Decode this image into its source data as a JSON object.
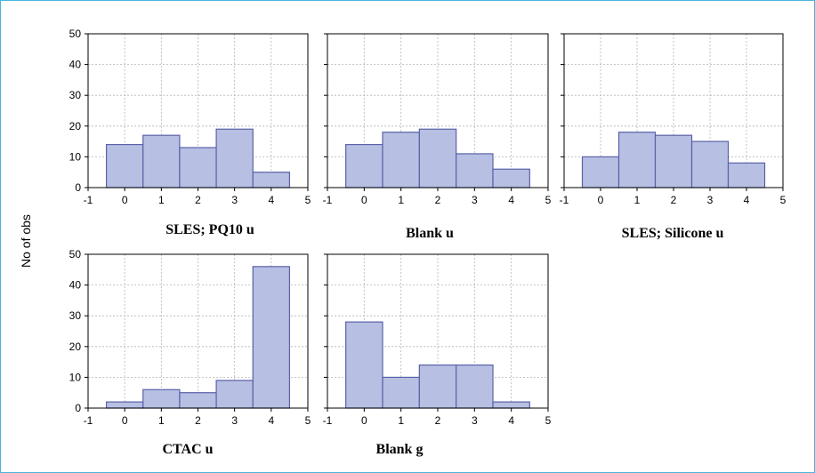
{
  "y_axis_label": "No of obs",
  "chart_data": [
    {
      "type": "bar",
      "title": "SLES; PQ10 u",
      "categories": [
        "0",
        "1",
        "2",
        "3",
        "4"
      ],
      "values": [
        14,
        17,
        13,
        19,
        5
      ],
      "xlim": [
        -1,
        5
      ],
      "ylim": [
        0,
        50
      ],
      "x_ticks": [
        "-1",
        "0",
        "1",
        "2",
        "3",
        "4",
        "5"
      ],
      "y_ticks": [
        "0",
        "10",
        "20",
        "30",
        "40",
        "50"
      ],
      "grid": true
    },
    {
      "type": "bar",
      "title": "Blank u",
      "categories": [
        "0",
        "1",
        "2",
        "3",
        "4"
      ],
      "values": [
        14,
        18,
        19,
        11,
        6
      ],
      "xlim": [
        -1,
        5
      ],
      "ylim": [
        0,
        50
      ],
      "x_ticks": [
        "-1",
        "0",
        "1",
        "2",
        "3",
        "4",
        "5"
      ],
      "y_ticks": [
        "0",
        "10",
        "20",
        "30",
        "40",
        "50"
      ],
      "grid": true
    },
    {
      "type": "bar",
      "title": "SLES; Silicone u",
      "categories": [
        "0",
        "1",
        "2",
        "3",
        "4"
      ],
      "values": [
        10,
        18,
        17,
        15,
        8
      ],
      "xlim": [
        -1,
        5
      ],
      "ylim": [
        0,
        50
      ],
      "x_ticks": [
        "-1",
        "0",
        "1",
        "2",
        "3",
        "4",
        "5"
      ],
      "y_ticks": [
        "0",
        "10",
        "20",
        "30",
        "40",
        "50"
      ],
      "grid": true
    },
    {
      "type": "bar",
      "title": "CTAC u",
      "categories": [
        "0",
        "1",
        "2",
        "3",
        "4"
      ],
      "values": [
        2,
        6,
        5,
        9,
        46
      ],
      "xlim": [
        -1,
        5
      ],
      "ylim": [
        0,
        50
      ],
      "x_ticks": [
        "-1",
        "0",
        "1",
        "2",
        "3",
        "4",
        "5"
      ],
      "y_ticks": [
        "0",
        "10",
        "20",
        "30",
        "40",
        "50"
      ],
      "grid": true
    },
    {
      "type": "bar",
      "title": "Blank g",
      "categories": [
        "0",
        "1",
        "2",
        "3",
        "4"
      ],
      "values": [
        28,
        10,
        14,
        14,
        2
      ],
      "xlim": [
        -1,
        5
      ],
      "ylim": [
        0,
        50
      ],
      "x_ticks": [
        "-1",
        "0",
        "1",
        "2",
        "3",
        "4",
        "5"
      ],
      "y_ticks": [
        "0",
        "10",
        "20",
        "30",
        "40",
        "50"
      ],
      "grid": true
    }
  ],
  "colors": {
    "bar_fill": "#b7bfe3",
    "bar_stroke": "#5a62a8",
    "grid": "#b5b5b5",
    "axis": "#000000",
    "frame": "#4bb5dc"
  }
}
